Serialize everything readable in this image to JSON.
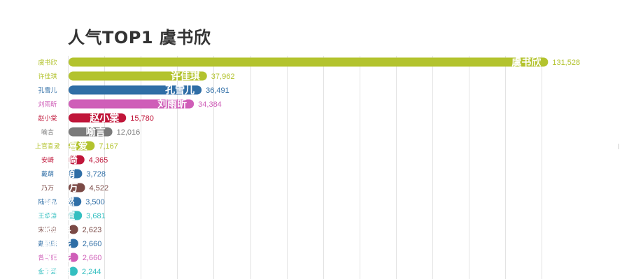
{
  "title": "人气TOP1 虞书欣",
  "chart_data": {
    "type": "bar",
    "orientation": "horizontal",
    "title": "人气TOP1 虞书欣",
    "xlabel": "",
    "ylabel": "",
    "xlim": [
      0,
      133000
    ],
    "grid": true,
    "categories": [
      "虞书欣",
      "许佳琪",
      "孔雪儿",
      "刘雨昕",
      "赵小棠",
      "喻言",
      "上官喜爱",
      "安崎",
      "戴萌",
      "乃万",
      "陆柯燃",
      "王承渲",
      "宋昕冉",
      "戴燕妮",
      "曾可妮",
      "金子涵"
    ],
    "values": [
      131528,
      37962,
      36491,
      34384,
      15780,
      12016,
      7167,
      4365,
      3728,
      4522,
      3500,
      3681,
      2623,
      2660,
      2660,
      2244
    ],
    "value_labels": [
      "131,528",
      "37,962",
      "36,491",
      "34,384",
      "15,780",
      "12,016",
      "7,167",
      "4,365",
      "3,728",
      "4,522",
      "3,500",
      "3,681",
      "2,623",
      "2,660",
      "2,660",
      "2,244"
    ],
    "colors": [
      "#b3c32e",
      "#b3c32e",
      "#2f6ea6",
      "#cf5eb8",
      "#c0163a",
      "#7a7a7a",
      "#b3c32e",
      "#c0163a",
      "#2f6ea6",
      "#7b4a46",
      "#2f6ea6",
      "#33bfc0",
      "#7b4a46",
      "#2f6ea6",
      "#cf5eb8",
      "#33bfc0"
    ]
  }
}
